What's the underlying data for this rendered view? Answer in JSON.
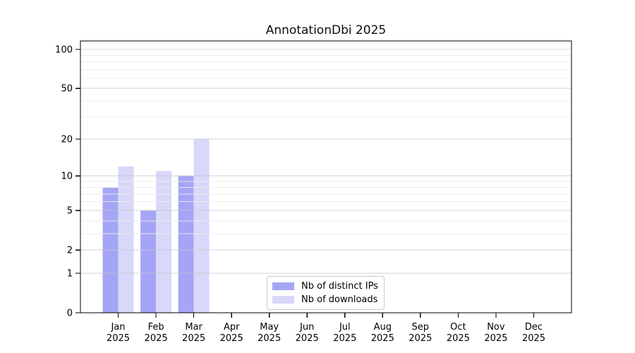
{
  "chart_data": {
    "type": "bar",
    "title": "AnnotationDbi 2025",
    "year": "2025",
    "months": [
      "Jan",
      "Feb",
      "Mar",
      "Apr",
      "May",
      "Jun",
      "Jul",
      "Aug",
      "Sep",
      "Oct",
      "Nov",
      "Dec"
    ],
    "series": [
      {
        "name": "Nb of distinct IPs",
        "color": "#a5a5f5",
        "values": [
          8,
          5,
          10,
          0,
          0,
          0,
          0,
          0,
          0,
          0,
          0,
          0
        ]
      },
      {
        "name": "Nb of downloads",
        "color": "#d8d8fa",
        "values": [
          12,
          11,
          20,
          0,
          0,
          0,
          0,
          0,
          0,
          0,
          0,
          0
        ]
      }
    ],
    "yscale": "log1p",
    "ylim": [
      0,
      117
    ],
    "yticks": [
      0,
      1,
      2,
      5,
      10,
      20,
      50,
      100
    ],
    "minor_yticks": [
      3,
      4,
      6,
      7,
      8,
      9,
      30,
      40,
      60,
      70,
      80,
      90
    ],
    "grid": true,
    "legend_position": "inside-bottom-center",
    "colors": {
      "grid_major": "#c9c9c9",
      "grid_minor": "#ececec",
      "spine": "#000000",
      "tick_text": "#000000",
      "legend_border": "#c9c9c9",
      "background": "#ffffff"
    }
  }
}
